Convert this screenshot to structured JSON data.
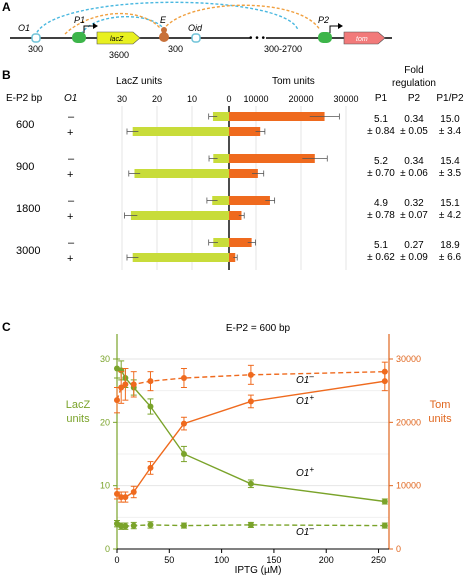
{
  "panels": {
    "A": "A",
    "B": "B",
    "C": "C"
  },
  "colors": {
    "lacz": "#c8dc3a",
    "lacz_dark": "#7aa32a",
    "tom": "#ef6a1e",
    "tom_dark": "#e0661e",
    "loop_blue": "#4ab8e0",
    "loop_orange": "#f0a040",
    "promoter": "#3db54a",
    "tom_gene": "#f27a7a",
    "operator": "#6fc3d8",
    "enhancer": "#c8713a"
  },
  "panel_a": {
    "o1": "O1",
    "p1": "P1",
    "lacz": "lacZ",
    "e": "E",
    "oid": "Oid",
    "p2": "P2",
    "tom": "tom",
    "dist1": "300",
    "dist2": "3600",
    "dist3": "300",
    "dist4": "300-2700"
  },
  "panel_b": {
    "header_ep2": "E-P2 bp",
    "header_o1": "O1",
    "header_lacz": "LacZ units",
    "header_tom": "Tom units",
    "header_fold": "Fold",
    "header_reg": "regulation",
    "col_p1": "P1",
    "col_p2": "P2",
    "col_p1p2": "P1/P2",
    "lacz_ticks": [
      "30",
      "20",
      "10",
      "0"
    ],
    "tom_ticks": [
      "10000",
      "20000",
      "30000"
    ],
    "groups": [
      {
        "bp": "600",
        "minus": "–",
        "plus": "+",
        "p1": "5.1",
        "p1_err": "± 0.84",
        "p2": "0.34",
        "p2_err": "± 0.05",
        "ratio": "15.0",
        "ratio_err": "± 3.4"
      },
      {
        "bp": "900",
        "minus": "–",
        "plus": "+",
        "p1": "5.2",
        "p1_err": "± 0.70",
        "p2": "0.34",
        "p2_err": "± 0.06",
        "ratio": "15.4",
        "ratio_err": "± 3.5"
      },
      {
        "bp": "1800",
        "minus": "–",
        "plus": "+",
        "p1": "4.9",
        "p1_err": "± 0.78",
        "p2": "0.32",
        "p2_err": "± 0.07",
        "ratio": "15.1",
        "ratio_err": "± 4.2"
      },
      {
        "bp": "3000",
        "minus": "–",
        "plus": "+",
        "p1": "5.1",
        "p1_err": "± 0.62",
        "p2": "0.27",
        "p2_err": "± 0.09",
        "ratio": "18.9",
        "ratio_err": "± 6.6"
      }
    ]
  },
  "panel_c": {
    "title": "E-P2 = 600 bp",
    "left_label_1": "LacZ",
    "left_label_2": "units",
    "right_label_1": "Tom",
    "right_label_2": "units",
    "x_label": "IPTG  (µM)",
    "x_ticks": [
      "0",
      "50",
      "100",
      "150",
      "200",
      "250"
    ],
    "y_left_ticks": [
      "0",
      "10",
      "20",
      "30"
    ],
    "y_right_ticks": [
      "0",
      "10000",
      "20000",
      "30000"
    ],
    "o1_minus": "O1",
    "o1_plus": "O1",
    "sup_minus": "–",
    "sup_plus": "+"
  },
  "chart_data": [
    {
      "type": "bar",
      "title": "",
      "xlabel": "LacZ units",
      "categories": [
        "600 –",
        "600 +",
        "900 –",
        "900 +",
        "1800 –",
        "1800 +",
        "3000 –",
        "3000 +"
      ],
      "values": [
        4.5,
        27,
        4.4,
        26.5,
        4.7,
        27.5,
        4.4,
        27
      ],
      "errors": [
        1.2,
        1.6,
        1.2,
        1.6,
        1.5,
        1.8,
        1.3,
        1.6
      ],
      "xlim": [
        30,
        0
      ],
      "orientation": "horizontal"
    },
    {
      "type": "bar",
      "title": "",
      "xlabel": "Tom units",
      "categories": [
        "600 –",
        "600 +",
        "900 –",
        "900 +",
        "1800 –",
        "1800 +",
        "3000 –",
        "3000 +"
      ],
      "values": [
        24500,
        8000,
        22000,
        7400,
        10500,
        3200,
        5800,
        1600
      ],
      "errors": [
        3800,
        1200,
        3200,
        1500,
        1200,
        700,
        1000,
        500
      ],
      "xlim": [
        0,
        35000
      ],
      "orientation": "horizontal"
    },
    {
      "type": "line",
      "title": "E-P2 = 600 bp",
      "xlabel": "IPTG  (µM)",
      "ylabel": "LacZ units",
      "y2label": "Tom units",
      "xlim": [
        0,
        260
      ],
      "ylim": [
        0,
        33
      ],
      "y2lim": [
        0,
        33000
      ],
      "series": [
        {
          "name": "O1⁺",
          "axis": "left",
          "x": [
            0,
            4,
            8,
            16,
            32,
            64,
            128,
            256
          ],
          "y": [
            28.5,
            28.2,
            27,
            25.5,
            22.5,
            15,
            10.3,
            7.5
          ],
          "err": [
            1.5,
            1.5,
            1.5,
            1.2,
            1.2,
            1.2,
            0.6,
            0.4
          ],
          "dashed": false
        },
        {
          "name": "O1–",
          "axis": "left",
          "x": [
            0,
            4,
            8,
            16,
            32,
            64,
            128,
            256
          ],
          "y": [
            4.0,
            3.6,
            3.6,
            3.7,
            3.8,
            3.7,
            3.8,
            3.7
          ],
          "err": [
            0.5,
            0.5,
            0.5,
            0.5,
            0.5,
            0.4,
            0.4,
            0.4
          ],
          "dashed": true
        },
        {
          "name": "O1⁺",
          "axis": "right",
          "x": [
            0,
            4,
            8,
            16,
            32,
            64,
            128,
            256
          ],
          "y": [
            8700,
            8200,
            8200,
            9000,
            12800,
            19800,
            23300,
            26500
          ],
          "err": [
            800,
            800,
            800,
            900,
            1000,
            1000,
            1000,
            1500
          ],
          "dashed": false
        },
        {
          "name": "O1–",
          "axis": "right",
          "x": [
            0,
            4,
            8,
            16,
            32,
            64,
            128,
            256
          ],
          "y": [
            23500,
            25500,
            26000,
            26000,
            26500,
            27000,
            27500,
            28000
          ],
          "err": [
            2000,
            2500,
            2500,
            2000,
            1500,
            1500,
            1500,
            1500
          ],
          "dashed": true
        }
      ]
    }
  ]
}
